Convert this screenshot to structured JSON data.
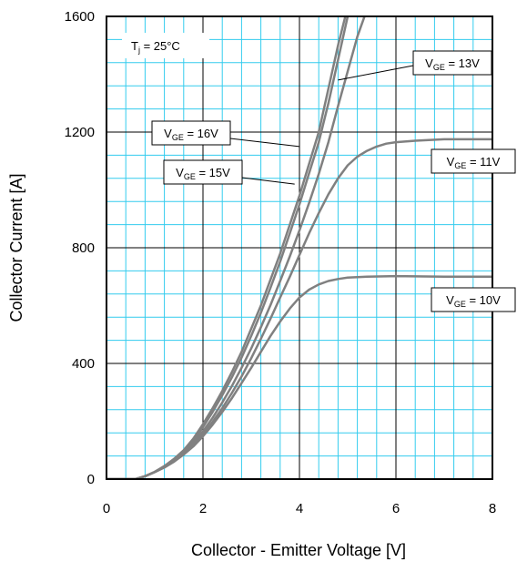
{
  "chart_data": {
    "type": "line",
    "title": "",
    "xlabel": "Collector - Emitter Voltage [V]",
    "ylabel": "Collector Current [A]",
    "xlim": [
      0,
      8
    ],
    "ylim": [
      0,
      1600
    ],
    "x_ticks": [
      "0",
      "2",
      "4",
      "6",
      "8"
    ],
    "y_ticks": [
      "0",
      "400",
      "800",
      "1200",
      "1600"
    ],
    "grid": true,
    "minor_grid": true,
    "colors": {
      "curve": "#808080",
      "minor_grid": "#33ccee",
      "major_grid": "#000000",
      "axes": "#000000"
    },
    "condition": {
      "main": "T",
      "sub": "j",
      "rest": " = 25°C"
    },
    "series": [
      {
        "name": "VGE = 16V",
        "label": {
          "main": "V",
          "sub": "GE",
          "rest": " = 16V"
        },
        "points": [
          [
            0,
            0
          ],
          [
            0.6,
            0
          ],
          [
            0.8,
            10
          ],
          [
            1.0,
            25
          ],
          [
            1.2,
            45
          ],
          [
            1.4,
            70
          ],
          [
            1.6,
            100
          ],
          [
            1.8,
            140
          ],
          [
            2.0,
            190
          ],
          [
            2.2,
            245
          ],
          [
            2.4,
            305
          ],
          [
            2.6,
            370
          ],
          [
            2.8,
            440
          ],
          [
            3.0,
            520
          ],
          [
            3.2,
            600
          ],
          [
            3.4,
            690
          ],
          [
            3.6,
            780
          ],
          [
            3.8,
            880
          ],
          [
            4.0,
            980
          ],
          [
            4.2,
            1090
          ],
          [
            4.4,
            1200
          ],
          [
            4.6,
            1350
          ],
          [
            4.8,
            1500
          ],
          [
            4.95,
            1600
          ]
        ]
      },
      {
        "name": "VGE = 15V",
        "label": {
          "main": "V",
          "sub": "GE",
          "rest": " = 15V"
        },
        "points": [
          [
            0,
            0
          ],
          [
            0.6,
            0
          ],
          [
            0.8,
            10
          ],
          [
            1.0,
            25
          ],
          [
            1.2,
            45
          ],
          [
            1.4,
            68
          ],
          [
            1.6,
            95
          ],
          [
            1.8,
            130
          ],
          [
            2.0,
            180
          ],
          [
            2.2,
            232
          ],
          [
            2.4,
            290
          ],
          [
            2.6,
            352
          ],
          [
            2.8,
            420
          ],
          [
            3.0,
            495
          ],
          [
            3.2,
            575
          ],
          [
            3.4,
            662
          ],
          [
            3.6,
            752
          ],
          [
            3.8,
            850
          ],
          [
            4.0,
            950
          ],
          [
            4.2,
            1058
          ],
          [
            4.4,
            1165
          ],
          [
            4.6,
            1300
          ],
          [
            4.8,
            1450
          ],
          [
            5.0,
            1600
          ]
        ]
      },
      {
        "name": "VGE = 13V",
        "label": {
          "main": "V",
          "sub": "GE",
          "rest": " = 13V"
        },
        "points": [
          [
            0,
            0
          ],
          [
            0.6,
            0
          ],
          [
            0.8,
            10
          ],
          [
            1.0,
            25
          ],
          [
            1.2,
            43
          ],
          [
            1.4,
            65
          ],
          [
            1.6,
            92
          ],
          [
            1.8,
            125
          ],
          [
            2.0,
            165
          ],
          [
            2.2,
            212
          ],
          [
            2.4,
            265
          ],
          [
            2.6,
            322
          ],
          [
            2.8,
            385
          ],
          [
            3.0,
            452
          ],
          [
            3.2,
            525
          ],
          [
            3.4,
            602
          ],
          [
            3.6,
            685
          ],
          [
            3.8,
            770
          ],
          [
            4.0,
            860
          ],
          [
            4.2,
            955
          ],
          [
            4.4,
            1055
          ],
          [
            4.6,
            1165
          ],
          [
            4.8,
            1290
          ],
          [
            5.0,
            1410
          ],
          [
            5.2,
            1530
          ],
          [
            5.35,
            1600
          ]
        ]
      },
      {
        "name": "VGE = 11V",
        "label": {
          "main": "V",
          "sub": "GE",
          "rest": " = 11V"
        },
        "points": [
          [
            0,
            0
          ],
          [
            0.6,
            0
          ],
          [
            0.8,
            10
          ],
          [
            1.0,
            25
          ],
          [
            1.2,
            42
          ],
          [
            1.4,
            62
          ],
          [
            1.6,
            88
          ],
          [
            1.8,
            118
          ],
          [
            2.0,
            155
          ],
          [
            2.2,
            198
          ],
          [
            2.4,
            245
          ],
          [
            2.6,
            298
          ],
          [
            2.8,
            355
          ],
          [
            3.0,
            418
          ],
          [
            3.2,
            485
          ],
          [
            3.4,
            555
          ],
          [
            3.6,
            628
          ],
          [
            3.8,
            700
          ],
          [
            4.0,
            775
          ],
          [
            4.2,
            850
          ],
          [
            4.4,
            920
          ],
          [
            4.6,
            985
          ],
          [
            4.8,
            1040
          ],
          [
            5.0,
            1085
          ],
          [
            5.2,
            1115
          ],
          [
            5.4,
            1135
          ],
          [
            5.6,
            1150
          ],
          [
            5.8,
            1160
          ],
          [
            6.0,
            1165
          ],
          [
            6.4,
            1170
          ],
          [
            7.0,
            1175
          ],
          [
            8.0,
            1175
          ]
        ]
      },
      {
        "name": "VGE = 10V",
        "label": {
          "main": "V",
          "sub": "GE",
          "rest": " = 10V"
        },
        "points": [
          [
            0,
            0
          ],
          [
            0.6,
            0
          ],
          [
            0.8,
            10
          ],
          [
            1.0,
            24
          ],
          [
            1.2,
            40
          ],
          [
            1.4,
            60
          ],
          [
            1.6,
            85
          ],
          [
            1.8,
            113
          ],
          [
            2.0,
            148
          ],
          [
            2.2,
            188
          ],
          [
            2.4,
            232
          ],
          [
            2.6,
            280
          ],
          [
            2.8,
            332
          ],
          [
            3.0,
            385
          ],
          [
            3.2,
            440
          ],
          [
            3.4,
            495
          ],
          [
            3.6,
            545
          ],
          [
            3.8,
            590
          ],
          [
            4.0,
            628
          ],
          [
            4.2,
            655
          ],
          [
            4.4,
            673
          ],
          [
            4.6,
            685
          ],
          [
            4.8,
            692
          ],
          [
            5.0,
            697
          ],
          [
            5.4,
            700
          ],
          [
            6.0,
            702
          ],
          [
            7.0,
            700
          ],
          [
            8.0,
            700
          ]
        ]
      }
    ],
    "annotations": [
      {
        "series": "VGE = 16V",
        "pointer_to": [
          4.0,
          1150
        ]
      },
      {
        "series": "VGE = 15V",
        "pointer_to": [
          3.9,
          1020
        ]
      },
      {
        "series": "VGE = 13V",
        "pointer_to": [
          4.8,
          1380
        ]
      }
    ]
  }
}
